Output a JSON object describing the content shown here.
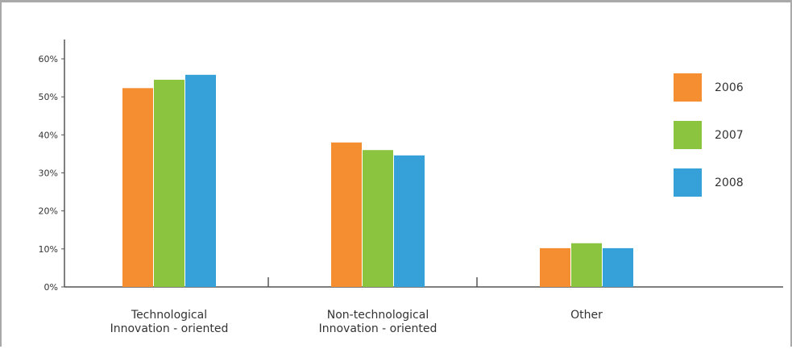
{
  "chart_data": {
    "type": "bar",
    "title": "",
    "xlabel": "",
    "ylabel": "",
    "ylim": [
      0,
      60
    ],
    "y_ticks": [
      "0%",
      "10%",
      "20%",
      "30%",
      "40%",
      "50%",
      "60%"
    ],
    "categories": [
      [
        "Technological",
        "Innovation - oriented"
      ],
      [
        "Non-technological",
        "Innovation - oriented"
      ],
      [
        "Other"
      ]
    ],
    "series": [
      {
        "name": "2006",
        "color": "#f58d31",
        "values": [
          52.3,
          38.0,
          10.2
        ]
      },
      {
        "name": "2007",
        "color": "#8bc53f",
        "values": [
          54.5,
          36.0,
          11.5
        ]
      },
      {
        "name": "2008",
        "color": "#36a0d8",
        "values": [
          55.8,
          34.6,
          10.2
        ]
      }
    ],
    "legend_position": "right",
    "grid": false
  }
}
